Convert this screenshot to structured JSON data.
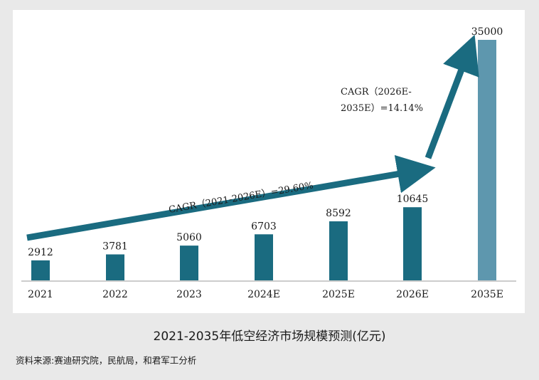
{
  "chart_data": {
    "type": "bar",
    "title": "",
    "xlabel": "",
    "ylabel": "",
    "categories": [
      "2021",
      "2022",
      "2023",
      "2024E",
      "2025E",
      "2026E",
      "2035E"
    ],
    "values": [
      2912,
      3781,
      5060,
      6703,
      8592,
      10645,
      35000
    ],
    "value_labels": [
      "2912",
      "3781",
      "5060",
      "6703",
      "8592",
      "10645",
      "35000"
    ],
    "ylim": [
      0,
      35000
    ],
    "grid": false,
    "legend": "none",
    "colors": {
      "bar": "#1a6b80",
      "bar_highlight": "#5e97ae",
      "arrow": "#1a6b80"
    },
    "annotations": [
      {
        "text": "CAGR（2021-2026E）=29.60%"
      },
      {
        "text_line1": "CAGR（2026E-",
        "text_line2": "2035E）=14.14%"
      }
    ]
  },
  "caption": "2021-2035年低空经济市场规模预测(亿元)",
  "source": "资料来源:赛迪研究院，民航局，和君军工分析"
}
